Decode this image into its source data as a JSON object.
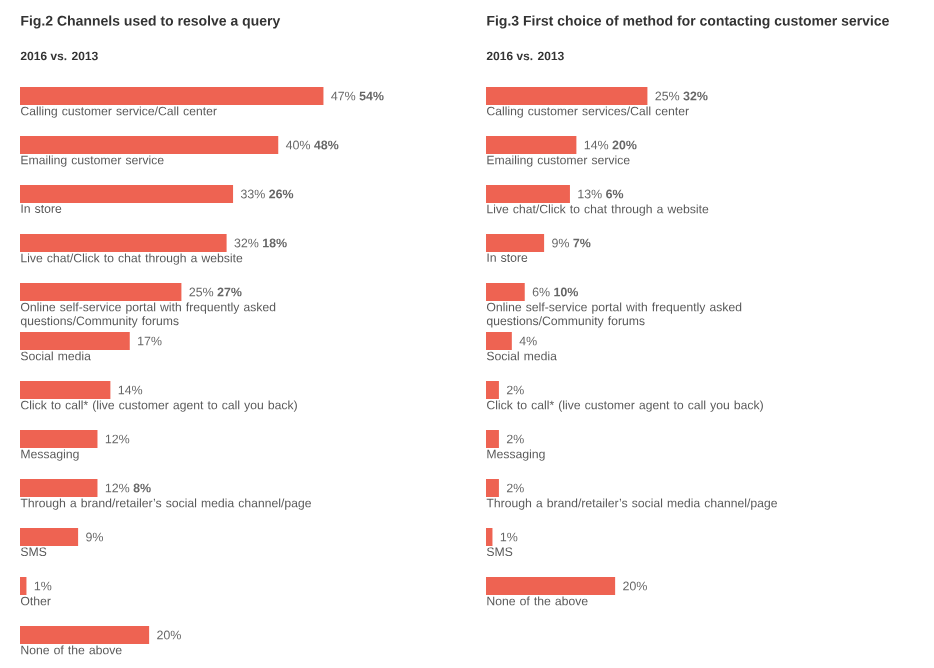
{
  "chart_data": [
    {
      "type": "bar",
      "orientation": "horizontal",
      "title": "Fig.2 Channels used to resolve a query",
      "subtitle": "2016 vs. **2013**",
      "categories": [
        "Calling customer service/Call center",
        "Emailing customer service",
        "In store",
        "Live chat/Click to chat through a website",
        "Online self-service portal with frequently asked questions/Community forums",
        "Social media",
        "Click to call* (live customer agent to call you back)",
        "Messaging",
        "Through a brand/retailer’s social media channel/page",
        "SMS",
        "Other",
        "None of the above"
      ],
      "series": [
        {
          "color": "#ee6352",
          "values": [
            47,
            40,
            33,
            32,
            25,
            17,
            14,
            12,
            12,
            9,
            1,
            20
          ],
          "value_labels": [
            "47% **54%**",
            "40% **48%**",
            "33% **26%**",
            "32% **18%**",
            "25% **27%**",
            "17%",
            "14%",
            "12%",
            "12% **8%**",
            "9%",
            "1%",
            "20%"
          ]
        }
      ]
    },
    {
      "type": "bar",
      "orientation": "horizontal",
      "title": "Fig.3 First choice of method for contacting customer service",
      "subtitle": "2016 vs. **2013**",
      "categories": [
        "Calling customer services/Call center",
        "Emailing customer service",
        "Live chat/Click to chat through a website",
        "In store",
        "Online self-service portal with frequently asked questions/Community forums",
        "Social media",
        "Click to call* (live customer agent to call you back)",
        "Messaging",
        "Through a brand/retailer’s social media channel/page",
        "SMS",
        "None of the above"
      ],
      "series": [
        {
          "color": "#ee6352",
          "values": [
            25,
            14,
            13,
            9,
            6,
            4,
            2,
            2,
            2,
            1,
            20
          ],
          "value_labels": [
            "25% **32%**",
            "14% **20%**",
            "13% **6%**",
            "9% **7%**",
            "6% **10%**",
            "4%",
            "2%",
            "2%",
            "2%",
            "1%",
            "20%"
          ]
        }
      ]
    }
  ]
}
